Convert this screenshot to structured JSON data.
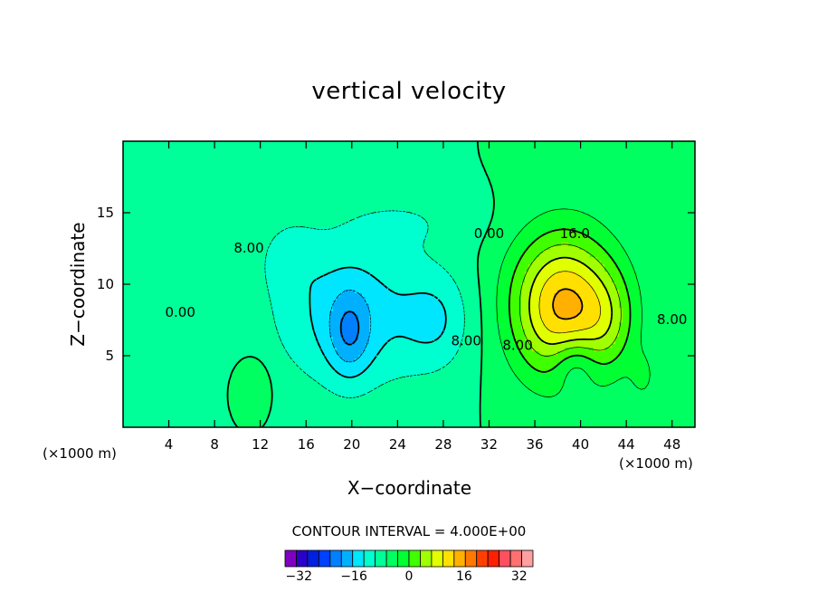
{
  "chart_data": {
    "type": "contour",
    "title": "vertical velocity",
    "xlabel": "X−coordinate",
    "ylabel": "Z−coordinate",
    "x_unit": "(×1000 m)",
    "y_unit": "(×1000 m)",
    "xlim": [
      0,
      50
    ],
    "ylim": [
      0,
      20
    ],
    "x_ticks": [
      4,
      8,
      12,
      16,
      20,
      24,
      28,
      32,
      36,
      40,
      44,
      48
    ],
    "y_ticks": [
      5,
      10,
      15
    ],
    "contour_interval_text": "CONTOUR INTERVAL = 4.000E+00",
    "contour_interval": 4,
    "contour_labels": [
      {
        "text": "0.00",
        "x": 5,
        "z": 8
      },
      {
        "text": "8.00",
        "x": 11,
        "z": 12.5
      },
      {
        "text": "0.00",
        "x": 32,
        "z": 13.5
      },
      {
        "text": "16.0",
        "x": 39.5,
        "z": 13.5
      },
      {
        "text": "8.00",
        "x": 30,
        "z": 6
      },
      {
        "text": "8.00",
        "x": 34.5,
        "z": 5.7
      },
      {
        "text": "8.00",
        "x": 48,
        "z": 7.5
      }
    ],
    "features": [
      {
        "kind": "updraft_max",
        "x": 39,
        "z": 7.5,
        "value": 24
      },
      {
        "kind": "downdraft_min",
        "x": 20,
        "z": 6.5,
        "value": -16
      },
      {
        "kind": "downdraft",
        "x": 27.5,
        "z": 6.5,
        "value": -12
      }
    ],
    "colorbar": {
      "min": -36,
      "max": 36,
      "step": 4,
      "tick_labels": [
        "−32",
        "−16",
        "0",
        "16",
        "32"
      ],
      "tick_values": [
        -32,
        -16,
        0,
        16,
        32
      ],
      "colors": [
        "#7f00c0",
        "#2a00c8",
        "#0020e0",
        "#0040ff",
        "#0080ff",
        "#00b0ff",
        "#00e6ff",
        "#00ffd0",
        "#00ff99",
        "#00ff60",
        "#00ff33",
        "#40ff00",
        "#a0ff00",
        "#e0ff00",
        "#ffe000",
        "#ffb000",
        "#ff7800",
        "#ff4000",
        "#ff2000",
        "#ff5060",
        "#ff7070",
        "#ffa0a0"
      ]
    },
    "grid": false,
    "legend": "colorbar-bottom"
  }
}
